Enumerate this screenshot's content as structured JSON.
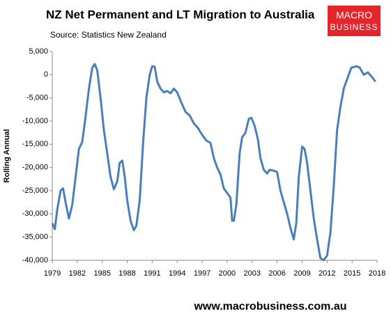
{
  "chart_data": {
    "type": "line",
    "title": "NZ Net Permanent and LT Migration to Australia",
    "subtitle": "Source: Statistics New Zealand",
    "y_label": "Rolling Annual",
    "logo": [
      "MACRO",
      "BUSINESS"
    ],
    "footer": "www.macrobusiness.com.au",
    "xlim": [
      1979,
      2018
    ],
    "xticks": [
      1979,
      1982,
      1985,
      1988,
      1991,
      1994,
      1997,
      2000,
      2003,
      2006,
      2009,
      2012,
      2015,
      2018
    ],
    "ylim": [
      -40000,
      5000
    ],
    "yticks": [
      {
        "value": -40000,
        "label": "-40,000"
      },
      {
        "value": -35000,
        "label": "-35,000"
      },
      {
        "value": -30000,
        "label": "-30,000"
      },
      {
        "value": -25000,
        "label": "-25,000"
      },
      {
        "value": -20000,
        "label": "-20,000"
      },
      {
        "value": -15000,
        "label": "-15,000"
      },
      {
        "value": -10000,
        "label": "-10,000"
      },
      {
        "value": -5000,
        "label": "-5,000"
      },
      0,
      {
        "value": 5000,
        "label": "5,000"
      }
    ],
    "series": [
      {
        "name": "Rolling Annual",
        "color": "#4a7ebb",
        "x": [
          1979.0,
          1979.3,
          1979.6,
          1980.0,
          1980.3,
          1980.6,
          1981.0,
          1981.4,
          1981.8,
          1982.2,
          1982.6,
          1983.0,
          1983.4,
          1983.8,
          1984.1,
          1984.4,
          1984.8,
          1985.2,
          1985.6,
          1986.0,
          1986.4,
          1986.8,
          1987.1,
          1987.4,
          1987.7,
          1988.0,
          1988.4,
          1988.8,
          1989.1,
          1989.5,
          1989.9,
          1990.3,
          1990.7,
          1991.0,
          1991.3,
          1991.6,
          1992.0,
          1992.4,
          1992.8,
          1993.2,
          1993.6,
          1994.0,
          1994.5,
          1995.0,
          1995.5,
          1996.0,
          1996.5,
          1997.0,
          1997.5,
          1998.0,
          1998.4,
          1998.8,
          1999.2,
          1999.6,
          2000.0,
          2000.4,
          2000.6,
          2000.8,
          2001.1,
          2001.5,
          2001.8,
          2002.2,
          2002.6,
          2002.9,
          2003.3,
          2003.7,
          2004.0,
          2004.4,
          2004.8,
          2005.1,
          2005.6,
          2006.0,
          2006.4,
          2006.8,
          2007.2,
          2007.6,
          2008.0,
          2008.3,
          2008.6,
          2009.0,
          2009.3,
          2009.6,
          2010.0,
          2010.4,
          2010.8,
          2011.2,
          2011.6,
          2012.0,
          2012.4,
          2012.8,
          2013.2,
          2013.6,
          2014.0,
          2014.4,
          2014.9,
          2015.5,
          2015.9,
          2016.4,
          2016.9,
          2017.4,
          2017.8
        ],
        "values": [
          -32000,
          -33300,
          -29000,
          -25000,
          -24500,
          -27500,
          -31000,
          -28000,
          -22000,
          -16000,
          -14500,
          -9000,
          -3000,
          1500,
          2300,
          1000,
          -5000,
          -12000,
          -17000,
          -22000,
          -24700,
          -23000,
          -19000,
          -18500,
          -22000,
          -27000,
          -31500,
          -33500,
          -32500,
          -27000,
          -15000,
          -5000,
          0,
          1800,
          1700,
          -1500,
          -3000,
          -3800,
          -3500,
          -4000,
          -3000,
          -3800,
          -6000,
          -8000,
          -8800,
          -10500,
          -11500,
          -13000,
          -14200,
          -14700,
          -18000,
          -20000,
          -21500,
          -24500,
          -25500,
          -26500,
          -31500,
          -31500,
          -28000,
          -17000,
          -13500,
          -12500,
          -9500,
          -9300,
          -11000,
          -14000,
          -18000,
          -20500,
          -21300,
          -20500,
          -20700,
          -21000,
          -25000,
          -27500,
          -30000,
          -33000,
          -35500,
          -32000,
          -22000,
          -15500,
          -16000,
          -19000,
          -25000,
          -31000,
          -35500,
          -39500,
          -40000,
          -39000,
          -34000,
          -24000,
          -12000,
          -7000,
          -3000,
          -1000,
          1500,
          1800,
          1600,
          0,
          500,
          -500,
          -1500
        ]
      }
    ]
  }
}
